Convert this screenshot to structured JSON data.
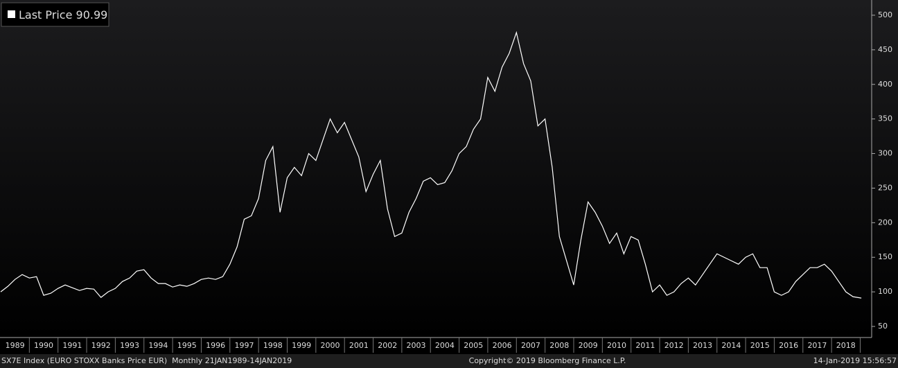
{
  "chart_data": {
    "type": "line",
    "series": [
      {
        "name": "Last Price",
        "color": "#ffffff",
        "values": [
          100,
          108,
          118,
          125,
          120,
          122,
          95,
          98,
          105,
          110,
          106,
          102,
          105,
          104,
          92,
          100,
          105,
          115,
          120,
          130,
          132,
          120,
          112,
          112,
          107,
          110,
          108,
          112,
          118,
          120,
          118,
          122,
          140,
          165,
          205,
          210,
          235,
          290,
          310,
          215,
          265,
          280,
          268,
          300,
          290,
          320,
          350,
          330,
          345,
          320,
          295,
          245,
          270,
          290,
          220,
          180,
          185,
          215,
          235,
          260,
          265,
          255,
          258,
          275,
          300,
          310,
          335,
          350,
          410,
          390,
          425,
          445,
          475,
          430,
          405,
          340,
          350,
          280,
          180,
          145,
          110,
          175,
          230,
          215,
          195,
          170,
          185,
          155,
          180,
          175,
          140,
          100,
          110,
          95,
          100,
          112,
          120,
          110,
          125,
          140,
          155,
          150,
          145,
          140,
          150,
          155,
          135,
          135,
          100,
          95,
          100,
          115,
          125,
          135,
          135,
          140,
          130,
          115,
          100,
          93,
          90.99
        ]
      }
    ],
    "last_value": 90.99,
    "x": [
      1989,
      1989.25,
      1989.5,
      1989.75,
      1990,
      1990.25,
      1990.5,
      1990.75,
      1991,
      1991.25,
      1991.5,
      1991.75,
      1992,
      1992.25,
      1992.5,
      1992.75,
      1993,
      1993.25,
      1993.5,
      1993.75,
      1994,
      1994.25,
      1994.5,
      1994.75,
      1995,
      1995.25,
      1995.5,
      1995.75,
      1996,
      1996.25,
      1996.5,
      1996.75,
      1997,
      1997.25,
      1997.5,
      1997.75,
      1998,
      1998.25,
      1998.5,
      1998.75,
      1999,
      1999.25,
      1999.5,
      1999.75,
      2000,
      2000.25,
      2000.5,
      2000.75,
      2001,
      2001.25,
      2001.5,
      2001.75,
      2002,
      2002.25,
      2002.5,
      2002.75,
      2003,
      2003.25,
      2003.5,
      2003.75,
      2004,
      2004.25,
      2004.5,
      2004.75,
      2005,
      2005.25,
      2005.5,
      2005.75,
      2006,
      2006.25,
      2006.5,
      2006.75,
      2007,
      2007.25,
      2007.5,
      2007.75,
      2008,
      2008.25,
      2008.5,
      2008.75,
      2009,
      2009.25,
      2009.5,
      2009.75,
      2010,
      2010.25,
      2010.5,
      2010.75,
      2011,
      2011.25,
      2011.5,
      2011.75,
      2012,
      2012.25,
      2012.5,
      2012.75,
      2013,
      2013.25,
      2013.5,
      2013.75,
      2014,
      2014.25,
      2014.5,
      2014.75,
      2015,
      2015.25,
      2015.5,
      2015.75,
      2016,
      2016.25,
      2016.5,
      2016.75,
      2017,
      2017.25,
      2017.5,
      2017.75,
      2018,
      2018.25,
      2018.5,
      2018.75,
      2019.04
    ],
    "xlim": [
      1989,
      2019.4
    ],
    "xticks": [
      1989,
      1990,
      1991,
      1992,
      1993,
      1994,
      1995,
      1996,
      1997,
      1998,
      1999,
      2000,
      2001,
      2002,
      2003,
      2004,
      2005,
      2006,
      2007,
      2008,
      2009,
      2010,
      2011,
      2012,
      2013,
      2014,
      2015,
      2016,
      2017,
      2018
    ],
    "ylim": [
      34,
      522
    ],
    "yticks": [
      50,
      100,
      150,
      200,
      250,
      300,
      350,
      400,
      450,
      500
    ],
    "footer_left": "SX7E Index (EURO STOXX Banks Price EUR)  Monthly 21JAN1989-14JAN2019",
    "footer_center": "Copyright© 2019 Bloomberg Finance L.P.",
    "footer_right": "14-Jan-2019 15:56:57"
  }
}
